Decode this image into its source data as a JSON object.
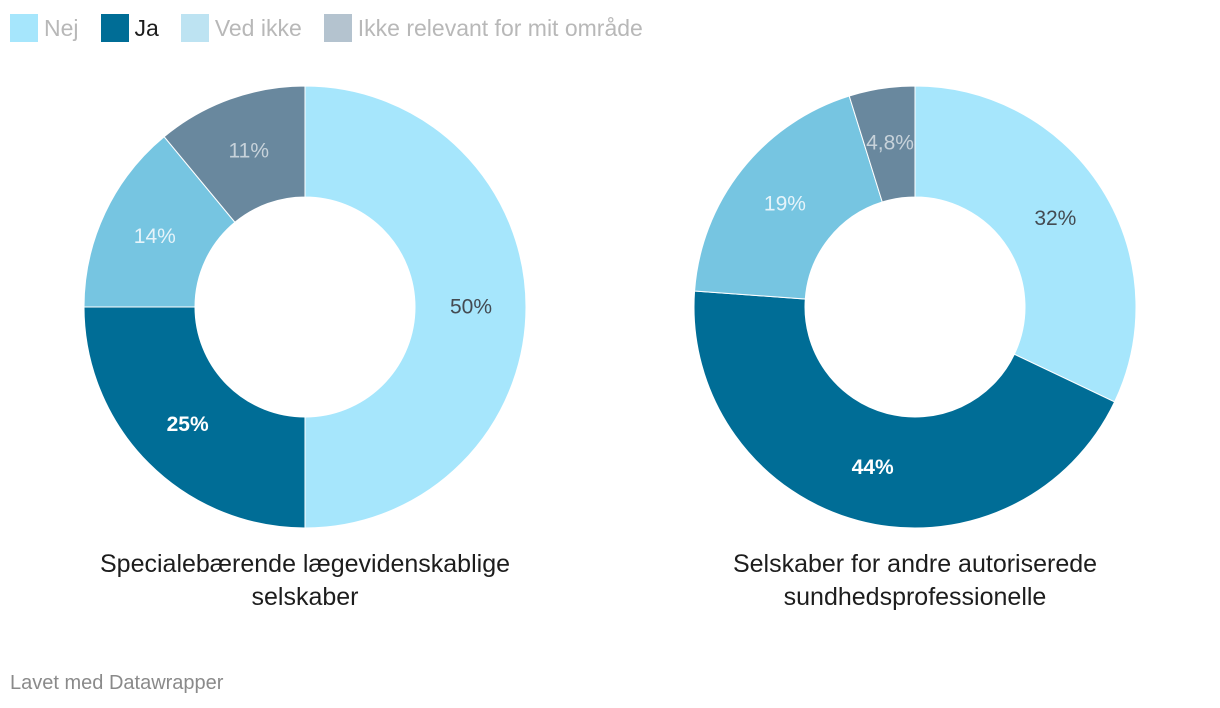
{
  "legend": [
    {
      "label": "Nej",
      "color": "#a6e6fc",
      "text_color": "#b8b8b8"
    },
    {
      "label": "Ja",
      "color": "#006d96",
      "text_color": "#1d1d1d"
    },
    {
      "label": "Ved ikke",
      "color": "#bde3f2",
      "text_color": "#b8b8b8"
    },
    {
      "label": "Ikke relevant for mit område",
      "color": "#b4c3cf",
      "text_color": "#b8b8b8"
    }
  ],
  "chart_data": [
    {
      "type": "pie",
      "title": "Specialebærende lægevidenskablige selskaber",
      "categories": [
        "Nej",
        "Ja",
        "Ved ikke",
        "Ikke relevant for mit område"
      ],
      "values": [
        50,
        25,
        14,
        11
      ],
      "labels": [
        "50%",
        "25%",
        "14%",
        "11%"
      ],
      "colors": [
        "#a6e6fc",
        "#006d96",
        "#76c5e1",
        "#69889e"
      ]
    },
    {
      "type": "pie",
      "title": "Selskaber for andre autoriserede sundhedsprofessionelle",
      "categories": [
        "Nej",
        "Ja",
        "Ved ikke",
        "Ikke relevant for mit område"
      ],
      "values": [
        32,
        44,
        19,
        4.8
      ],
      "labels": [
        "32%",
        "44%",
        "19%",
        "4,8%"
      ],
      "colors": [
        "#a6e6fc",
        "#006d96",
        "#76c5e1",
        "#69889e"
      ]
    }
  ],
  "label_colors": [
    "#444b52",
    "#ffffff",
    "#e6f4fa",
    "#c7d2da"
  ],
  "footer": {
    "credit": "Lavet med Datawrapper"
  }
}
